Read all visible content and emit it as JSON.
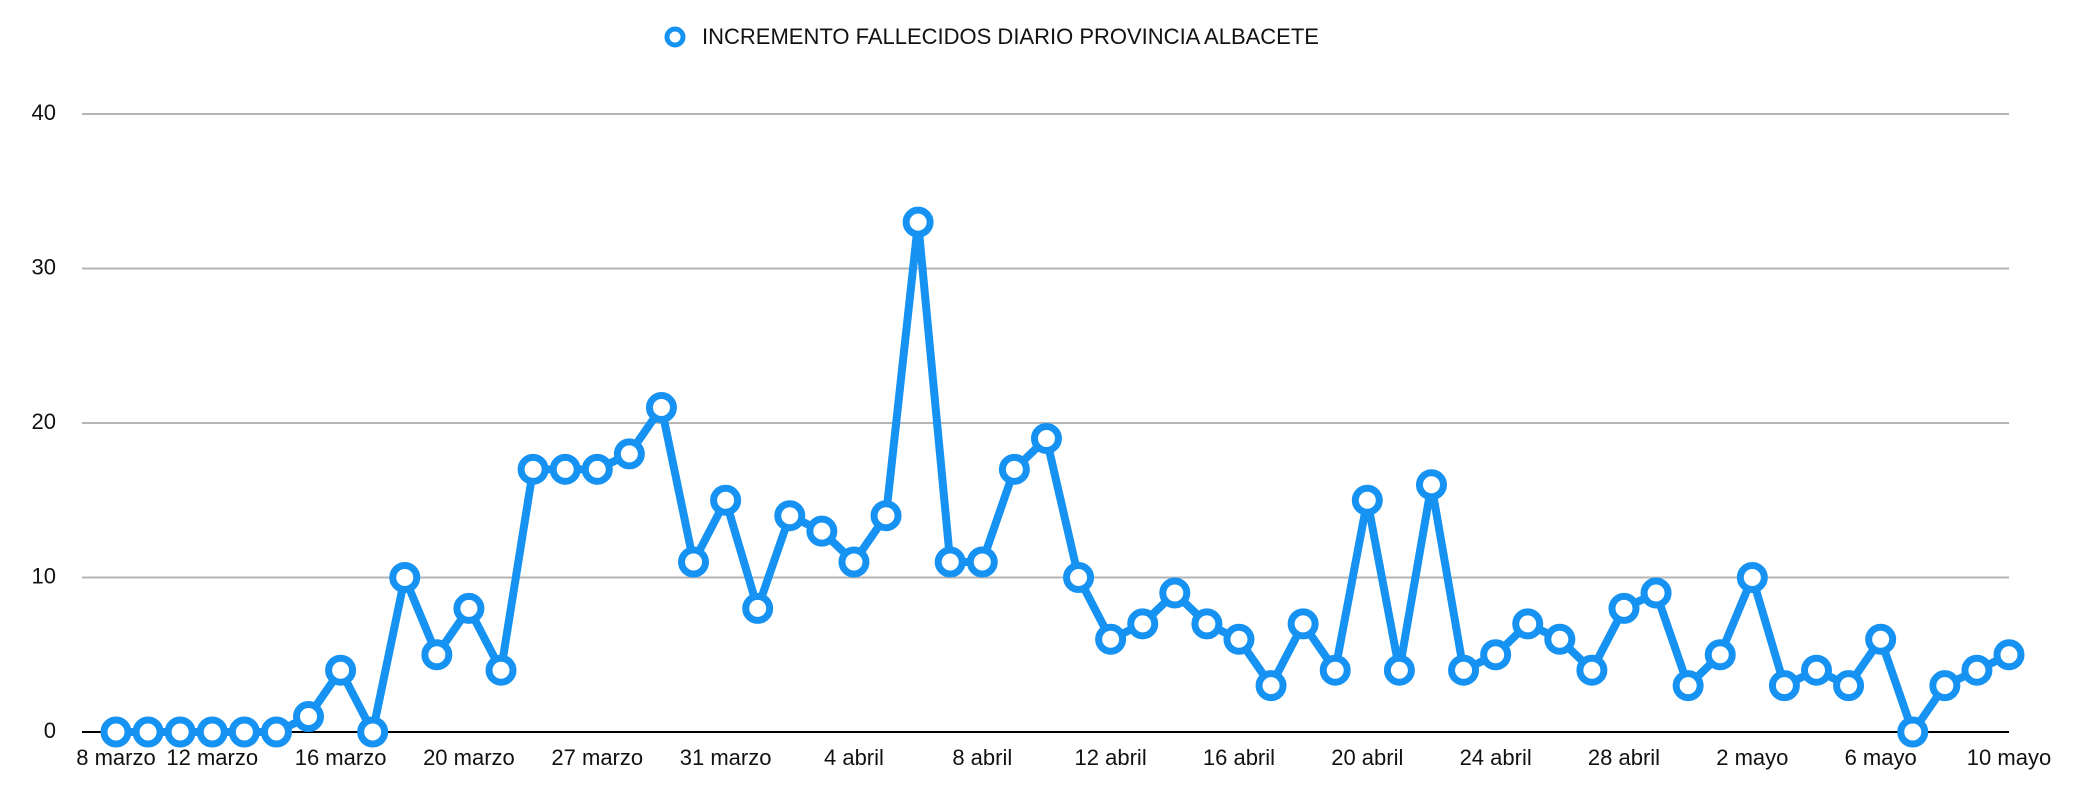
{
  "chart_data": {
    "type": "line",
    "categories": [
      "8 marzo",
      null,
      null,
      "12 marzo",
      null,
      null,
      null,
      "16 marzo",
      null,
      null,
      null,
      "20 marzo",
      null,
      null,
      null,
      "27 marzo",
      null,
      null,
      null,
      "31 marzo",
      null,
      null,
      null,
      "4 abril",
      null,
      null,
      null,
      "8 abril",
      null,
      null,
      null,
      "12 abril",
      null,
      null,
      null,
      "16 abril",
      null,
      null,
      null,
      "20 abril",
      null,
      null,
      null,
      "24 abril",
      null,
      null,
      null,
      "28 abril",
      null,
      null,
      null,
      "2 mayo",
      null,
      null,
      null,
      "6 mayo",
      null,
      null,
      null,
      "10 mayo"
    ],
    "series": [
      {
        "name": "INCREMENTO FALLECIDOS DIARIO PROVINCIA ALBACETE",
        "color": "#1592f2",
        "values": [
          0,
          0,
          0,
          0,
          0,
          0,
          1,
          4,
          0,
          10,
          5,
          8,
          4,
          17,
          17,
          17,
          18,
          21,
          11,
          15,
          8,
          14,
          13,
          11,
          14,
          33,
          11,
          11,
          17,
          19,
          10,
          6,
          7,
          9,
          7,
          6,
          3,
          7,
          4,
          15,
          4,
          16,
          4,
          5,
          7,
          6,
          4,
          8,
          9,
          3,
          5,
          10,
          3,
          4,
          3,
          6,
          0,
          3,
          4,
          5
        ]
      }
    ],
    "ylim": [
      0,
      40
    ],
    "yticks": [
      0,
      10,
      20,
      30,
      40
    ],
    "grid": true
  }
}
